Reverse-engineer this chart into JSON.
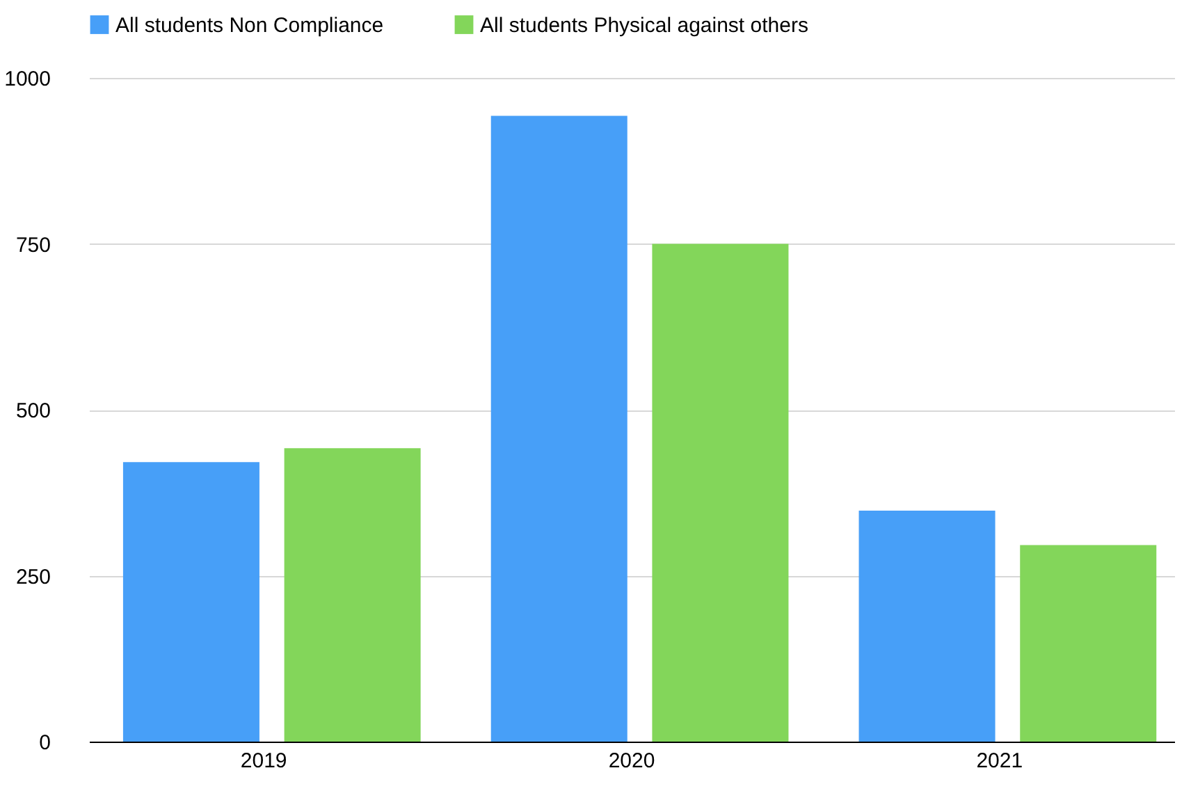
{
  "chart_data": {
    "type": "bar",
    "categories": [
      "2019",
      "2020",
      "2021"
    ],
    "series": [
      {
        "name": "All students Non Compliance",
        "color": "#479ff8",
        "values": [
          421,
          943,
          348
        ]
      },
      {
        "name": "All students Physical against others",
        "color": "#83d65a",
        "values": [
          442,
          750,
          296
        ]
      }
    ],
    "ylim": [
      0,
      1000
    ],
    "yticks": [
      0,
      250,
      500,
      750,
      1000
    ],
    "grid": "y",
    "legend": "top"
  }
}
